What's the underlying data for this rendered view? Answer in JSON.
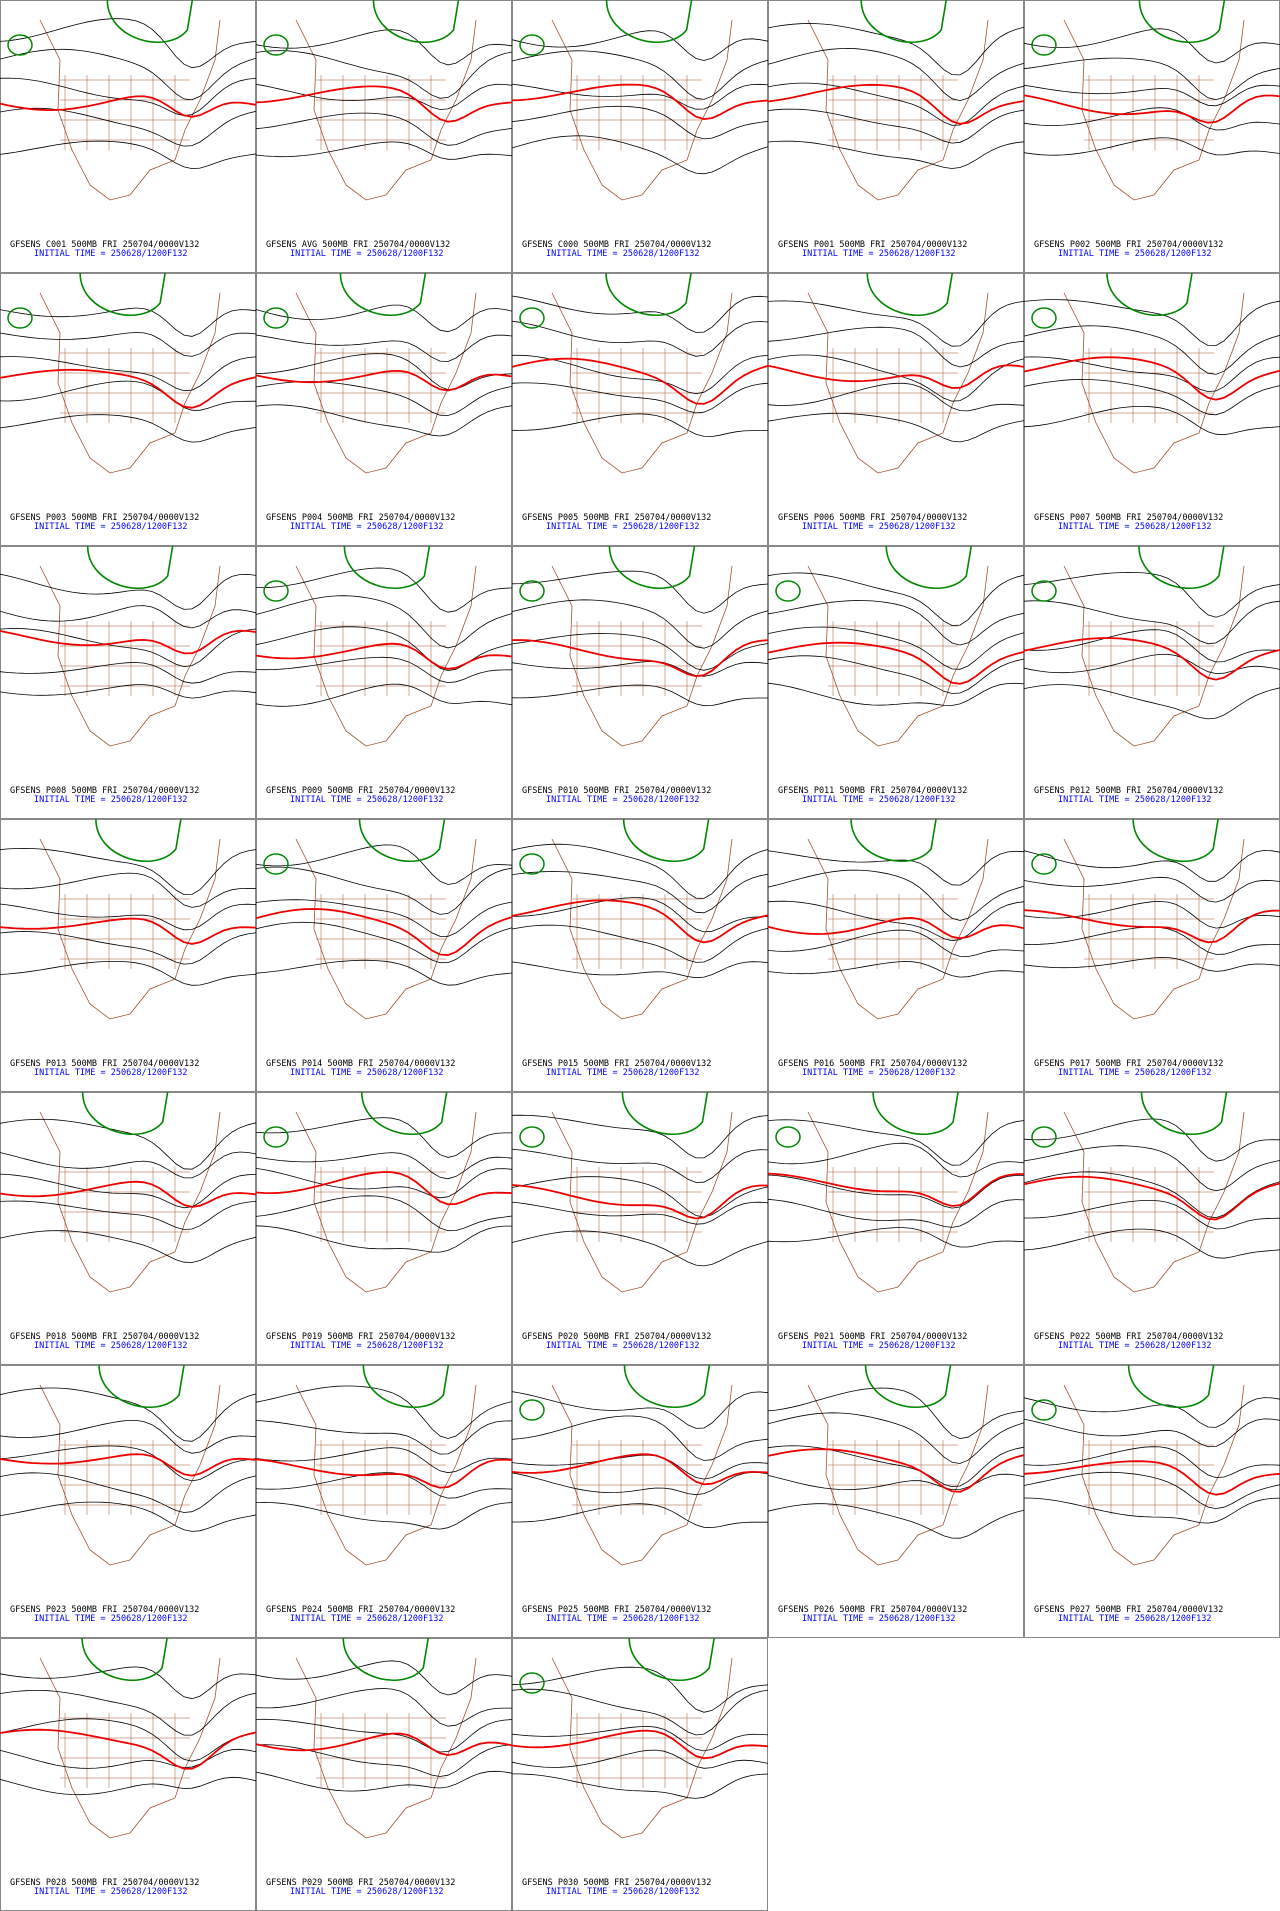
{
  "panels": [
    {
      "caption": "GFSENS C001 500MB FRI 250704/0000V132",
      "init": "INITIAL TIME = 250628/1200F132"
    },
    {
      "caption": "GFSENS AVG 500MB FRI 250704/0000V132",
      "init": "INITIAL TIME = 250628/1200F132"
    },
    {
      "caption": "GFSENS C000 500MB FRI 250704/0000V132",
      "init": "INITIAL TIME = 250628/1200F132"
    },
    {
      "caption": "GFSENS P001 500MB FRI 250704/0000V132",
      "init": "INITIAL TIME = 250628/1200F132"
    },
    {
      "caption": "GFSENS P002 500MB FRI 250704/0000V132",
      "init": "INITIAL TIME = 250628/1200F132"
    },
    {
      "caption": "GFSENS P003 500MB FRI 250704/0000V132",
      "init": "INITIAL TIME = 250628/1200F132"
    },
    {
      "caption": "GFSENS P004 500MB FRI 250704/0000V132",
      "init": "INITIAL TIME = 250628/1200F132"
    },
    {
      "caption": "GFSENS P005 500MB FRI 250704/0000V132",
      "init": "INITIAL TIME = 250628/1200F132"
    },
    {
      "caption": "GFSENS P006 500MB FRI 250704/0000V132",
      "init": "INITIAL TIME = 250628/1200F132"
    },
    {
      "caption": "GFSENS P007 500MB FRI 250704/0000V132",
      "init": "INITIAL TIME = 250628/1200F132"
    },
    {
      "caption": "GFSENS P008 500MB FRI 250704/0000V132",
      "init": "INITIAL TIME = 250628/1200F132"
    },
    {
      "caption": "GFSENS P009 500MB FRI 250704/0000V132",
      "init": "INITIAL TIME = 250628/1200F132"
    },
    {
      "caption": "GFSENS P010 500MB FRI 250704/0000V132",
      "init": "INITIAL TIME = 250628/1200F132"
    },
    {
      "caption": "GFSENS P011 500MB FRI 250704/0000V132",
      "init": "INITIAL TIME = 250628/1200F132"
    },
    {
      "caption": "GFSENS P012 500MB FRI 250704/0000V132",
      "init": "INITIAL TIME = 250628/1200F132"
    },
    {
      "caption": "GFSENS P013 500MB FRI 250704/0000V132",
      "init": "INITIAL TIME = 250628/1200F132"
    },
    {
      "caption": "GFSENS P014 500MB FRI 250704/0000V132",
      "init": "INITIAL TIME = 250628/1200F132"
    },
    {
      "caption": "GFSENS P015 500MB FRI 250704/0000V132",
      "init": "INITIAL TIME = 250628/1200F132"
    },
    {
      "caption": "GFSENS P016 500MB FRI 250704/0000V132",
      "init": "INITIAL TIME = 250628/1200F132"
    },
    {
      "caption": "GFSENS P017 500MB FRI 250704/0000V132",
      "init": "INITIAL TIME = 250628/1200F132"
    },
    {
      "caption": "GFSENS P018 500MB FRI 250704/0000V132",
      "init": "INITIAL TIME = 250628/1200F132"
    },
    {
      "caption": "GFSENS P019 500MB FRI 250704/0000V132",
      "init": "INITIAL TIME = 250628/1200F132"
    },
    {
      "caption": "GFSENS P020 500MB FRI 250704/0000V132",
      "init": "INITIAL TIME = 250628/1200F132"
    },
    {
      "caption": "GFSENS P021 500MB FRI 250704/0000V132",
      "init": "INITIAL TIME = 250628/1200F132"
    },
    {
      "caption": "GFSENS P022 500MB FRI 250704/0000V132",
      "init": "INITIAL TIME = 250628/1200F132"
    },
    {
      "caption": "GFSENS P023 500MB FRI 250704/0000V132",
      "init": "INITIAL TIME = 250628/1200F132"
    },
    {
      "caption": "GFSENS P024 500MB FRI 250704/0000V132",
      "init": "INITIAL TIME = 250628/1200F132"
    },
    {
      "caption": "GFSENS P025 500MB FRI 250704/0000V132",
      "init": "INITIAL TIME = 250628/1200F132"
    },
    {
      "caption": "GFSENS P026 500MB FRI 250704/0000V132",
      "init": "INITIAL TIME = 250628/1200F132"
    },
    {
      "caption": "GFSENS P027 500MB FRI 250704/0000V132",
      "init": "INITIAL TIME = 250628/1200F132"
    },
    {
      "caption": "GFSENS P028 500MB FRI 250704/0000V132",
      "init": "INITIAL TIME = 250628/1200F132"
    },
    {
      "caption": "GFSENS P029 500MB FRI 250704/0000V132",
      "init": "INITIAL TIME = 250628/1200F132"
    },
    {
      "caption": "GFSENS P030 500MB FRI 250704/0000V132",
      "init": "INITIAL TIME = 250628/1200F132"
    }
  ]
}
